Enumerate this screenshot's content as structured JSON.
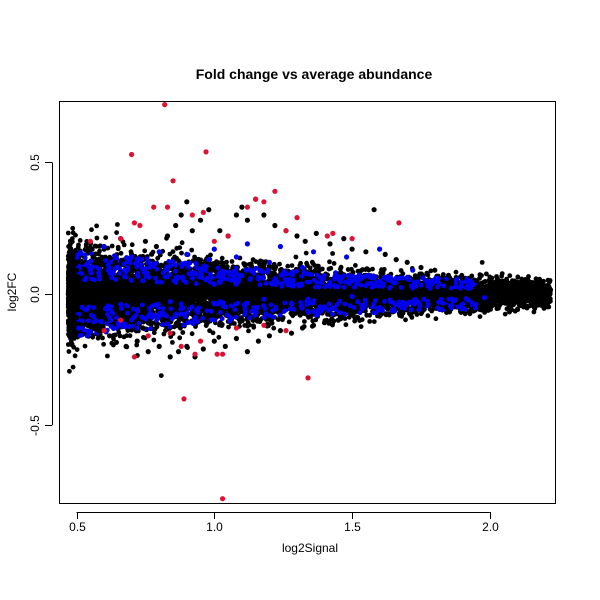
{
  "chart_data": {
    "type": "scatter",
    "title": "Fold change vs average abundance",
    "xlabel": "log2Signal",
    "ylabel": "log2FC",
    "xlim": [
      0.44,
      2.24
    ],
    "ylim": [
      -0.8,
      0.73
    ],
    "xticks": [
      0.5,
      1.0,
      1.5,
      2.0
    ],
    "xtick_labels": [
      "0.5",
      "1.0",
      "1.5",
      "2.0"
    ],
    "yticks": [
      -0.5,
      0.0,
      0.5
    ],
    "ytick_labels": [
      "-0.5",
      "0.0",
      "0.5"
    ],
    "grid": false,
    "legend": "none",
    "colors": {
      "black": "#000000",
      "blue": "#0000ee",
      "red": "#dd1133"
    },
    "series": [
      {
        "color": "black",
        "points": [
          [
            0.6,
            0.17
          ],
          [
            0.66,
            0.21
          ],
          [
            0.7,
            0.15
          ],
          [
            0.75,
            0.2
          ],
          [
            0.79,
            0.18
          ],
          [
            0.83,
            0.22
          ],
          [
            0.86,
            0.26
          ],
          [
            0.88,
            0.3
          ],
          [
            0.9,
            0.35
          ],
          [
            0.92,
            0.24
          ],
          [
            0.95,
            0.28
          ],
          [
            0.98,
            0.32
          ],
          [
            1.02,
            0.24
          ],
          [
            1.05,
            0.22
          ],
          [
            1.08,
            0.3
          ],
          [
            1.1,
            0.33
          ],
          [
            1.12,
            0.28
          ],
          [
            1.15,
            0.36
          ],
          [
            1.18,
            0.3
          ],
          [
            1.22,
            0.26
          ],
          [
            1.26,
            0.24
          ],
          [
            1.3,
            0.22
          ],
          [
            1.33,
            0.2
          ],
          [
            1.37,
            0.23
          ],
          [
            1.42,
            0.19
          ],
          [
            1.47,
            0.21
          ],
          [
            1.5,
            0.17
          ],
          [
            1.55,
            0.16
          ],
          [
            1.58,
            0.32
          ],
          [
            1.62,
            0.15
          ],
          [
            1.66,
            0.13
          ],
          [
            1.7,
            0.12
          ],
          [
            1.75,
            0.1
          ],
          [
            1.8,
            0.09
          ],
          [
            1.85,
            0.07
          ],
          [
            1.9,
            0.06
          ],
          [
            1.95,
            0.05
          ],
          [
            2.0,
            0.04
          ],
          [
            2.05,
            0.03
          ],
          [
            2.1,
            0.02
          ],
          [
            2.15,
            0.015
          ],
          [
            2.2,
            0.01
          ],
          [
            2.22,
            0.015
          ],
          [
            0.62,
            -0.16
          ],
          [
            0.68,
            -0.2
          ],
          [
            0.72,
            -0.18
          ],
          [
            0.76,
            -0.22
          ],
          [
            0.8,
            -0.2
          ],
          [
            0.84,
            -0.24
          ],
          [
            0.87,
            -0.22
          ],
          [
            0.9,
            -0.2
          ],
          [
            0.93,
            -0.24
          ],
          [
            0.96,
            -0.21
          ],
          [
            1.0,
            -0.18
          ],
          [
            1.04,
            -0.2
          ],
          [
            1.08,
            -0.17
          ],
          [
            1.12,
            -0.22
          ],
          [
            1.16,
            -0.18
          ],
          [
            1.2,
            -0.16
          ],
          [
            1.24,
            -0.14
          ],
          [
            1.28,
            -0.15
          ],
          [
            1.32,
            -0.13
          ],
          [
            1.36,
            -0.12
          ],
          [
            1.4,
            -0.11
          ],
          [
            1.45,
            -0.1
          ],
          [
            1.52,
            -0.09
          ],
          [
            1.6,
            -0.08
          ],
          [
            1.68,
            -0.07
          ],
          [
            1.76,
            -0.06
          ],
          [
            1.84,
            -0.05
          ],
          [
            1.92,
            -0.045
          ],
          [
            2.0,
            -0.04
          ],
          [
            2.08,
            -0.03
          ],
          [
            2.16,
            -0.02
          ],
          [
            0.48,
            0.05
          ],
          [
            0.48,
            -0.05
          ],
          [
            0.47,
            0.0
          ],
          [
            0.5,
            0.09
          ],
          [
            0.5,
            -0.09
          ],
          [
            0.52,
            0.12
          ],
          [
            0.54,
            -0.12
          ],
          [
            0.56,
            0.14
          ],
          [
            0.58,
            -0.14
          ],
          [
            0.64,
            0.12
          ],
          [
            0.74,
            -0.13
          ]
        ]
      },
      {
        "color": "blue",
        "points": [
          [
            0.55,
            0.09
          ],
          [
            0.58,
            0.08
          ],
          [
            0.6,
            0.18
          ],
          [
            0.62,
            -0.05
          ],
          [
            0.65,
            0.1
          ],
          [
            0.7,
            0.14
          ],
          [
            0.72,
            -0.06
          ],
          [
            0.76,
            0.12
          ],
          [
            0.8,
            0.16
          ],
          [
            0.82,
            -0.08
          ],
          [
            0.86,
            0.11
          ],
          [
            0.9,
            0.15
          ],
          [
            0.94,
            -0.07
          ],
          [
            0.98,
            0.13
          ],
          [
            1.0,
            0.17
          ],
          [
            1.04,
            -0.05
          ],
          [
            1.08,
            0.14
          ],
          [
            1.12,
            0.19
          ],
          [
            1.15,
            -0.06
          ],
          [
            1.2,
            0.12
          ],
          [
            1.24,
            0.18
          ],
          [
            1.28,
            -0.04
          ],
          [
            1.32,
            0.1
          ],
          [
            1.36,
            0.16
          ],
          [
            1.4,
            -0.05
          ],
          [
            1.44,
            0.08
          ],
          [
            1.48,
            0.14
          ],
          [
            1.52,
            -0.03
          ],
          [
            1.56,
            0.07
          ],
          [
            1.6,
            0.17
          ],
          [
            1.64,
            -0.03
          ],
          [
            1.68,
            0.06
          ],
          [
            1.72,
            0.09
          ],
          [
            1.76,
            -0.02
          ],
          [
            1.8,
            0.05
          ],
          [
            1.86,
            -0.02
          ],
          [
            1.92,
            0.03
          ],
          [
            1.98,
            -0.015
          ],
          [
            0.66,
            -0.04
          ],
          [
            0.74,
            0.05
          ],
          [
            0.84,
            -0.03
          ],
          [
            0.92,
            0.06
          ],
          [
            1.02,
            -0.03
          ],
          [
            1.1,
            0.07
          ],
          [
            1.18,
            -0.02
          ],
          [
            1.26,
            0.05
          ],
          [
            1.34,
            -0.02
          ],
          [
            1.42,
            0.04
          ],
          [
            1.5,
            -0.01
          ],
          [
            1.58,
            0.03
          ]
        ]
      },
      {
        "color": "red",
        "points": [
          [
            0.82,
            0.72
          ],
          [
            0.7,
            0.53
          ],
          [
            0.97,
            0.54
          ],
          [
            0.85,
            0.43
          ],
          [
            1.22,
            0.39
          ],
          [
            0.78,
            0.33
          ],
          [
            0.83,
            0.33
          ],
          [
            0.92,
            0.3
          ],
          [
            0.96,
            0.31
          ],
          [
            1.12,
            0.33
          ],
          [
            1.15,
            0.36
          ],
          [
            1.18,
            0.35
          ],
          [
            1.3,
            0.29
          ],
          [
            1.41,
            0.22
          ],
          [
            1.43,
            0.23
          ],
          [
            1.5,
            0.21
          ],
          [
            1.67,
            0.27
          ],
          [
            0.55,
            0.2
          ],
          [
            0.66,
            0.21
          ],
          [
            0.71,
            0.27
          ],
          [
            0.73,
            0.26
          ],
          [
            1.05,
            0.22
          ],
          [
            1.0,
            0.2
          ],
          [
            1.26,
            0.24
          ],
          [
            0.76,
            -0.16
          ],
          [
            0.84,
            -0.15
          ],
          [
            0.88,
            -0.2
          ],
          [
            0.93,
            -0.23
          ],
          [
            1.01,
            -0.23
          ],
          [
            1.03,
            -0.23
          ],
          [
            1.08,
            -0.13
          ],
          [
            0.71,
            -0.24
          ],
          [
            0.89,
            -0.4
          ],
          [
            1.34,
            -0.32
          ],
          [
            1.03,
            -0.78
          ],
          [
            0.66,
            -0.1
          ],
          [
            1.26,
            -0.14
          ],
          [
            1.18,
            -0.12
          ],
          [
            0.95,
            -0.18
          ],
          [
            0.6,
            -0.14
          ]
        ]
      }
    ]
  }
}
